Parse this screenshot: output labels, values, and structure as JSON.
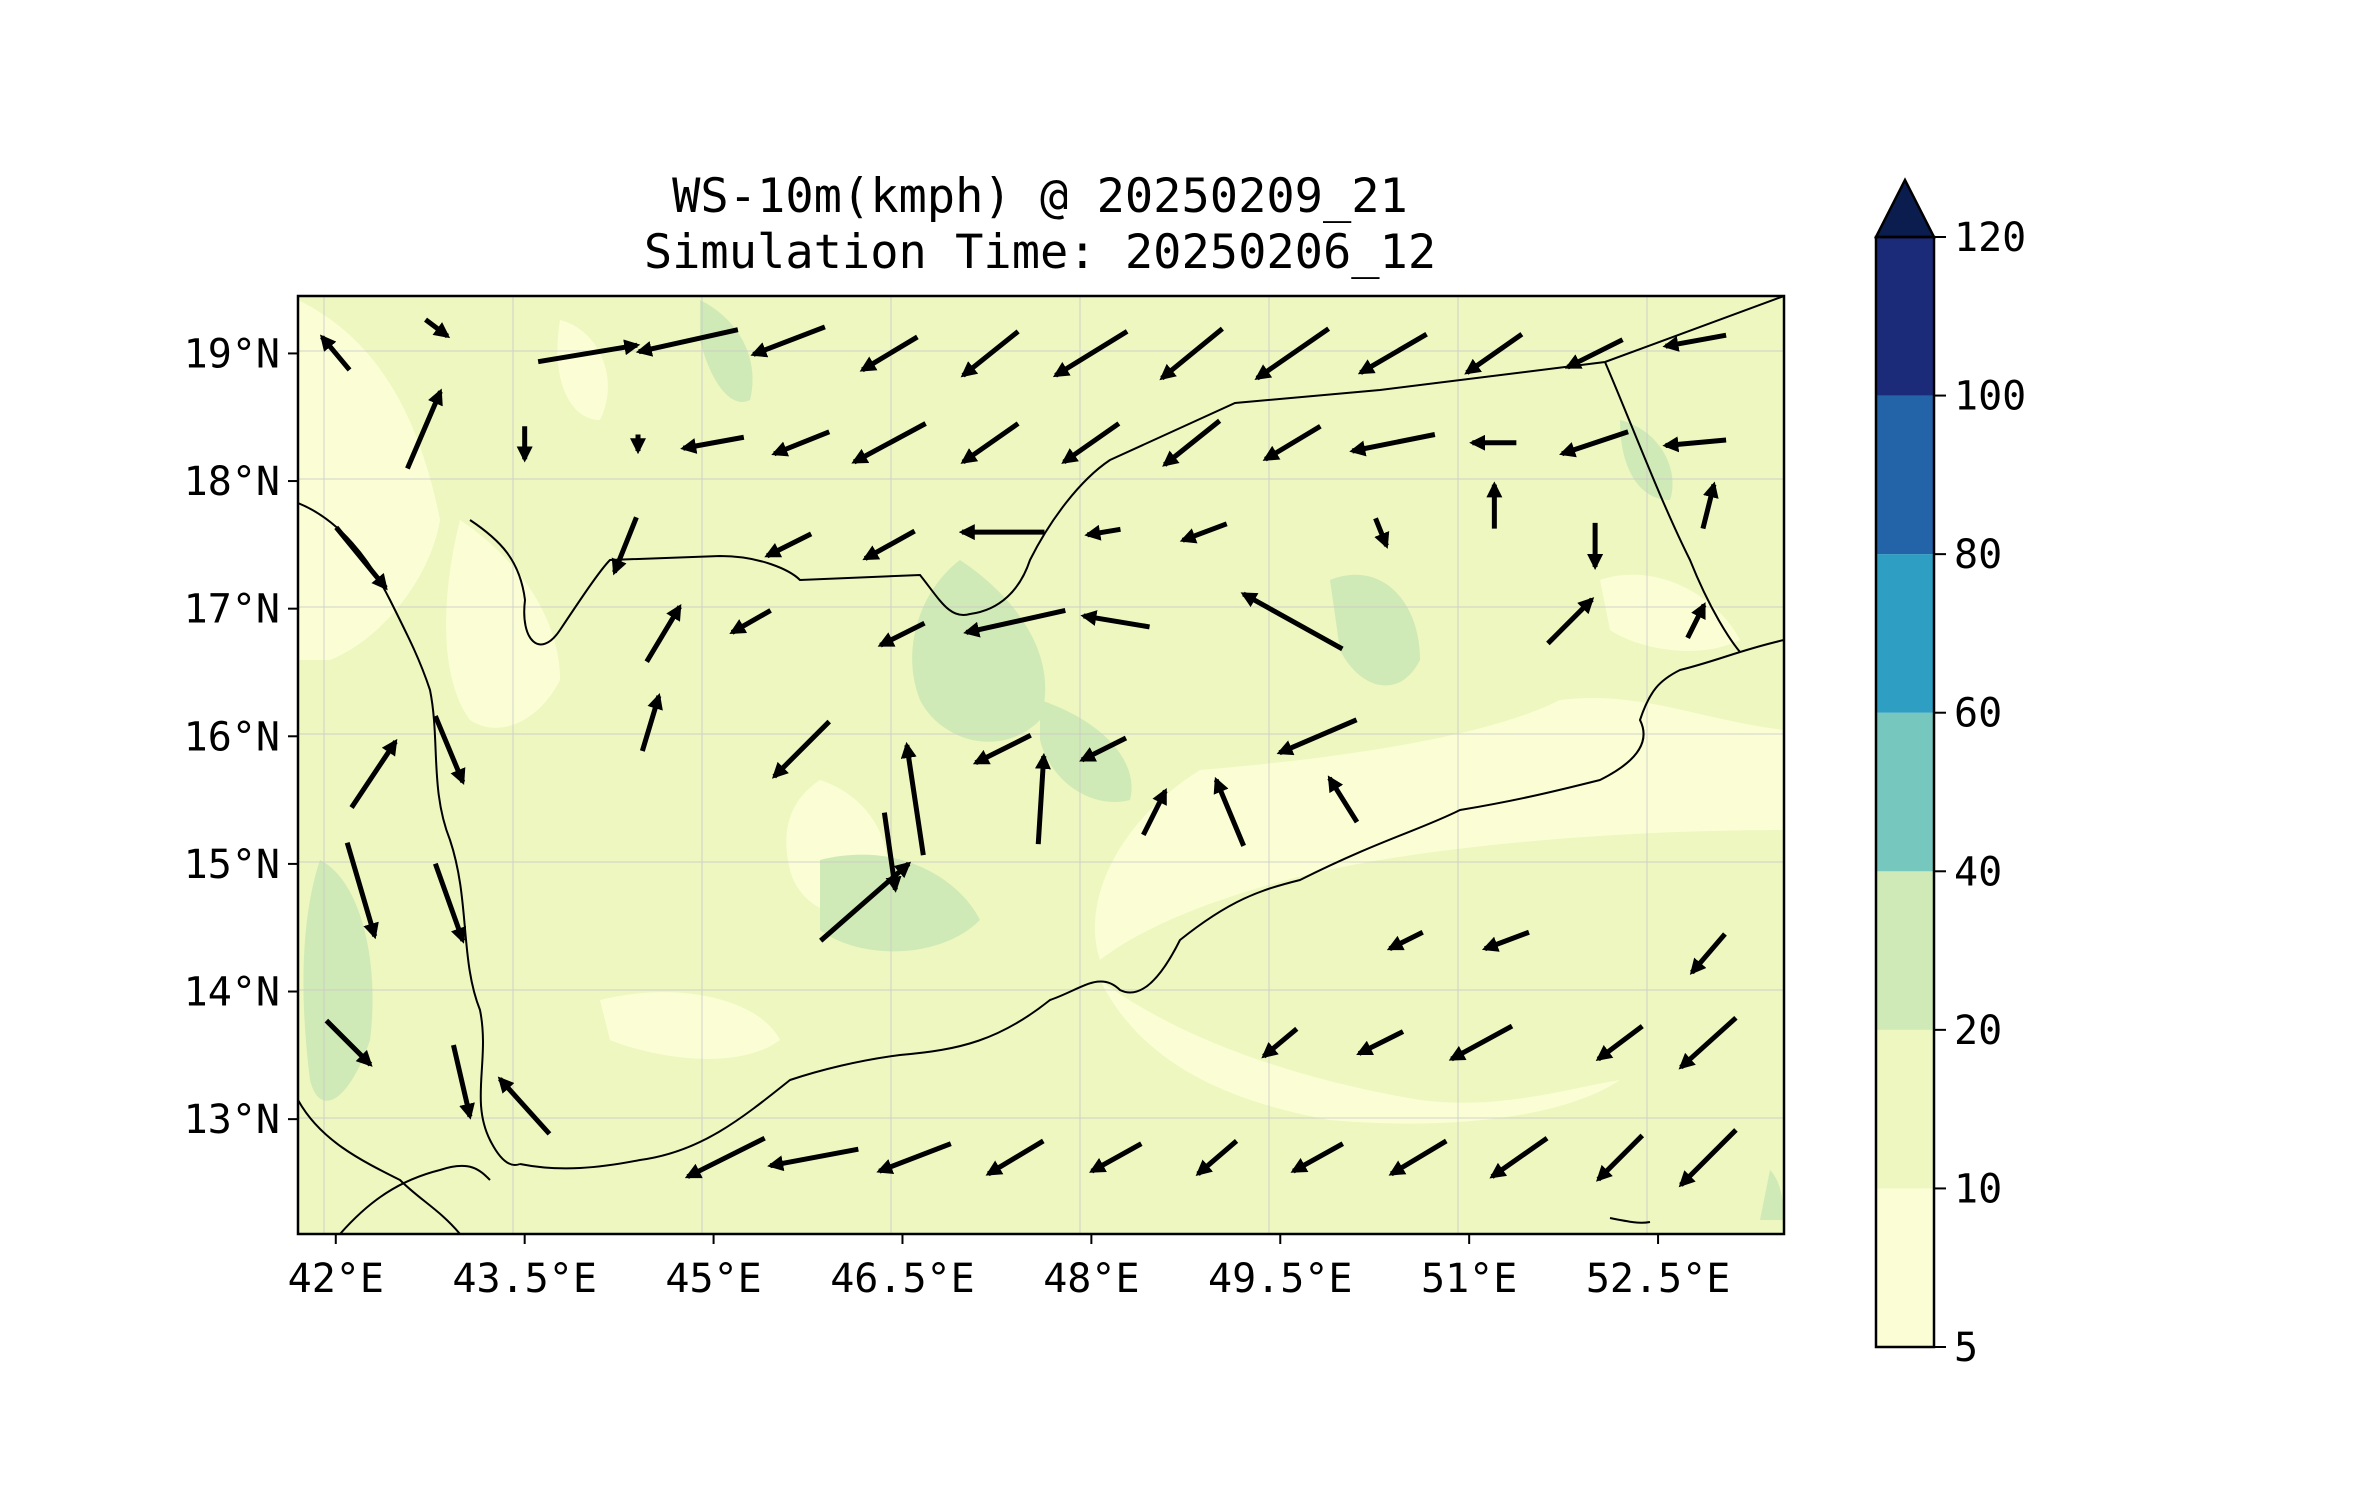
{
  "title": {
    "line1": "WS-10m(kmph) @ 20250209_21",
    "line2": "Simulation Time: 20250206_12"
  },
  "map": {
    "lon_range": [
      41.7,
      53.5
    ],
    "lat_range": [
      12.1,
      19.45
    ],
    "background_color": "#eef7c0",
    "xticks": [
      {
        "value": 42.0,
        "label": "42°E"
      },
      {
        "value": 43.5,
        "label": "43.5°E"
      },
      {
        "value": 45.0,
        "label": "45°E"
      },
      {
        "value": 46.5,
        "label": "46.5°E"
      },
      {
        "value": 48.0,
        "label": "48°E"
      },
      {
        "value": 49.5,
        "label": "49.5°E"
      },
      {
        "value": 51.0,
        "label": "51°E"
      },
      {
        "value": 52.5,
        "label": "52.5°E"
      }
    ],
    "yticks": [
      {
        "value": 19.0,
        "label": "19°N"
      },
      {
        "value": 18.0,
        "label": "18°N"
      },
      {
        "value": 17.0,
        "label": "17°N"
      },
      {
        "value": 16.0,
        "label": "16°N"
      },
      {
        "value": 15.0,
        "label": "15°N"
      },
      {
        "value": 14.0,
        "label": "14°N"
      },
      {
        "value": 13.0,
        "label": "13°N"
      }
    ],
    "gridlines": true,
    "wind_vectors_note_units": "kmph"
  },
  "colorbar": {
    "levels": [
      {
        "value": 5,
        "label": "5"
      },
      {
        "value": 10,
        "label": "10"
      },
      {
        "value": 20,
        "label": "20"
      },
      {
        "value": 40,
        "label": "40"
      },
      {
        "value": 60,
        "label": "60"
      },
      {
        "value": 80,
        "label": "80"
      },
      {
        "value": 100,
        "label": "100"
      },
      {
        "value": 120,
        "label": "120"
      }
    ],
    "colors": [
      "#fbfed4",
      "#eef7c0",
      "#cfeab6",
      "#76c7bd",
      "#2e9fc2",
      "#2363a8",
      "#1c2a7a"
    ],
    "extend_color": "#0b1d4f",
    "extend": "max"
  },
  "chart_data": {
    "type": "heatmap",
    "title": "WS-10m(kmph) @ 20250209_21 / Simulation Time: 20250206_12",
    "x": "longitude",
    "y": "latitude",
    "xlim": [
      41.7,
      53.5
    ],
    "ylim": [
      12.1,
      19.45
    ],
    "colorbar_levels": [
      5,
      10,
      20,
      40,
      60,
      80,
      100,
      120
    ],
    "dominant_range": "10-20 kmph with patches of 20-40 and below 10",
    "wind_vectors": [
      {
        "lon": 42.0,
        "lat": 19.0,
        "u": -0.5,
        "v": 0.6
      },
      {
        "lon": 42.8,
        "lat": 19.2,
        "u": 0.4,
        "v": -0.3
      },
      {
        "lon": 42.7,
        "lat": 18.4,
        "u": 0.6,
        "v": 1.4
      },
      {
        "lon": 44.0,
        "lat": 19.0,
        "u": 1.8,
        "v": 0.3
      },
      {
        "lon": 44.8,
        "lat": 19.1,
        "u": -1.8,
        "v": -0.4
      },
      {
        "lon": 45.6,
        "lat": 19.1,
        "u": -1.3,
        "v": -0.5
      },
      {
        "lon": 46.4,
        "lat": 19.0,
        "u": -1.0,
        "v": -0.6
      },
      {
        "lon": 47.2,
        "lat": 19.0,
        "u": -1.0,
        "v": -0.8
      },
      {
        "lon": 48.0,
        "lat": 19.0,
        "u": -1.3,
        "v": -0.8
      },
      {
        "lon": 48.8,
        "lat": 19.0,
        "u": -1.1,
        "v": -0.9
      },
      {
        "lon": 49.6,
        "lat": 19.0,
        "u": -1.3,
        "v": -0.9
      },
      {
        "lon": 50.4,
        "lat": 19.0,
        "u": -1.2,
        "v": -0.7
      },
      {
        "lon": 51.2,
        "lat": 19.0,
        "u": -1.0,
        "v": -0.7
      },
      {
        "lon": 52.0,
        "lat": 19.0,
        "u": -1.0,
        "v": -0.5
      },
      {
        "lon": 52.8,
        "lat": 19.1,
        "u": -1.1,
        "v": -0.2
      },
      {
        "lon": 43.5,
        "lat": 18.3,
        "u": 0.0,
        "v": -0.6
      },
      {
        "lon": 44.4,
        "lat": 18.3,
        "u": 0.0,
        "v": -0.3
      },
      {
        "lon": 45.0,
        "lat": 18.3,
        "u": -1.1,
        "v": -0.2
      },
      {
        "lon": 45.7,
        "lat": 18.3,
        "u": -1.0,
        "v": -0.4
      },
      {
        "lon": 46.4,
        "lat": 18.3,
        "u": -1.3,
        "v": -0.7
      },
      {
        "lon": 47.2,
        "lat": 18.3,
        "u": -1.0,
        "v": -0.7
      },
      {
        "lon": 48.0,
        "lat": 18.3,
        "u": -1.0,
        "v": -0.7
      },
      {
        "lon": 48.8,
        "lat": 18.3,
        "u": -1.0,
        "v": -0.8
      },
      {
        "lon": 49.6,
        "lat": 18.3,
        "u": -1.0,
        "v": -0.6
      },
      {
        "lon": 50.4,
        "lat": 18.3,
        "u": -1.5,
        "v": -0.3
      },
      {
        "lon": 51.2,
        "lat": 18.3,
        "u": -0.8,
        "v": 0.0
      },
      {
        "lon": 52.0,
        "lat": 18.3,
        "u": -1.2,
        "v": -0.4
      },
      {
        "lon": 52.8,
        "lat": 18.3,
        "u": -1.1,
        "v": -0.1
      },
      {
        "lon": 42.2,
        "lat": 17.4,
        "u": 0.9,
        "v": -1.1
      },
      {
        "lon": 44.3,
        "lat": 17.5,
        "u": -0.4,
        "v": -1.0
      },
      {
        "lon": 45.6,
        "lat": 17.5,
        "u": -0.8,
        "v": -0.4
      },
      {
        "lon": 46.4,
        "lat": 17.5,
        "u": -0.9,
        "v": -0.5
      },
      {
        "lon": 47.3,
        "lat": 17.6,
        "u": -1.5,
        "v": 0.0
      },
      {
        "lon": 48.1,
        "lat": 17.6,
        "u": -0.6,
        "v": -0.1
      },
      {
        "lon": 48.9,
        "lat": 17.6,
        "u": -0.8,
        "v": -0.3
      },
      {
        "lon": 49.6,
        "lat": 16.9,
        "u": -1.8,
        "v": 1.0
      },
      {
        "lon": 50.3,
        "lat": 17.6,
        "u": 0.2,
        "v": -0.5
      },
      {
        "lon": 51.2,
        "lat": 17.8,
        "u": 0.0,
        "v": 0.8
      },
      {
        "lon": 52.0,
        "lat": 17.5,
        "u": 0.0,
        "v": -0.8
      },
      {
        "lon": 52.9,
        "lat": 17.8,
        "u": 0.2,
        "v": 0.8
      },
      {
        "lon": 44.6,
        "lat": 16.8,
        "u": 0.6,
        "v": 1.0
      },
      {
        "lon": 45.3,
        "lat": 16.9,
        "u": -0.7,
        "v": -0.4
      },
      {
        "lon": 46.5,
        "lat": 16.8,
        "u": -0.8,
        "v": -0.4
      },
      {
        "lon": 47.4,
        "lat": 16.9,
        "u": -1.8,
        "v": -0.4
      },
      {
        "lon": 48.2,
        "lat": 16.9,
        "u": -1.2,
        "v": 0.2
      },
      {
        "lon": 51.8,
        "lat": 16.9,
        "u": 0.8,
        "v": 0.8
      },
      {
        "lon": 52.8,
        "lat": 16.9,
        "u": 0.3,
        "v": 0.6
      },
      {
        "lon": 42.3,
        "lat": 15.7,
        "u": 0.8,
        "v": 1.2
      },
      {
        "lon": 42.9,
        "lat": 15.9,
        "u": 0.5,
        "v": -1.2
      },
      {
        "lon": 44.5,
        "lat": 16.1,
        "u": 0.3,
        "v": 1.0
      },
      {
        "lon": 45.7,
        "lat": 15.9,
        "u": -1.0,
        "v": -1.0
      },
      {
        "lon": 46.6,
        "lat": 15.5,
        "u": -0.3,
        "v": 2.0
      },
      {
        "lon": 47.3,
        "lat": 15.9,
        "u": -1.0,
        "v": -0.5
      },
      {
        "lon": 47.6,
        "lat": 15.5,
        "u": 0.1,
        "v": 1.6
      },
      {
        "lon": 48.1,
        "lat": 15.9,
        "u": -0.8,
        "v": -0.4
      },
      {
        "lon": 48.5,
        "lat": 15.4,
        "u": 0.4,
        "v": 0.8
      },
      {
        "lon": 49.1,
        "lat": 15.4,
        "u": -0.5,
        "v": 1.2
      },
      {
        "lon": 49.8,
        "lat": 16.0,
        "u": -1.4,
        "v": -0.6
      },
      {
        "lon": 50.0,
        "lat": 15.5,
        "u": -0.5,
        "v": 0.8
      },
      {
        "lon": 46.2,
        "lat": 14.7,
        "u": 1.6,
        "v": 1.4
      },
      {
        "lon": 46.4,
        "lat": 15.1,
        "u": 0.2,
        "v": -1.4
      },
      {
        "lon": 42.2,
        "lat": 14.8,
        "u": 0.5,
        "v": -1.7
      },
      {
        "lon": 42.9,
        "lat": 14.7,
        "u": 0.5,
        "v": -1.4
      },
      {
        "lon": 42.1,
        "lat": 13.6,
        "u": 0.8,
        "v": -0.8
      },
      {
        "lon": 43.0,
        "lat": 13.3,
        "u": 0.3,
        "v": -1.3
      },
      {
        "lon": 43.5,
        "lat": 13.1,
        "u": -0.9,
        "v": 1.0
      },
      {
        "lon": 45.1,
        "lat": 12.7,
        "u": -1.4,
        "v": -0.7
      },
      {
        "lon": 45.8,
        "lat": 12.7,
        "u": -1.6,
        "v": -0.3
      },
      {
        "lon": 46.6,
        "lat": 12.7,
        "u": -1.3,
        "v": -0.5
      },
      {
        "lon": 47.4,
        "lat": 12.7,
        "u": -1.0,
        "v": -0.6
      },
      {
        "lon": 48.2,
        "lat": 12.7,
        "u": -0.9,
        "v": -0.5
      },
      {
        "lon": 49.0,
        "lat": 12.7,
        "u": -0.7,
        "v": -0.6
      },
      {
        "lon": 49.8,
        "lat": 12.7,
        "u": -0.9,
        "v": -0.5
      },
      {
        "lon": 50.6,
        "lat": 12.7,
        "u": -1.0,
        "v": -0.6
      },
      {
        "lon": 51.4,
        "lat": 12.7,
        "u": -1.0,
        "v": -0.7
      },
      {
        "lon": 52.2,
        "lat": 12.7,
        "u": -0.8,
        "v": -0.8
      },
      {
        "lon": 52.9,
        "lat": 12.7,
        "u": -1.0,
        "v": -1.0
      },
      {
        "lon": 51.1,
        "lat": 13.6,
        "u": -1.1,
        "v": -0.6
      },
      {
        "lon": 52.2,
        "lat": 13.6,
        "u": -0.8,
        "v": -0.6
      },
      {
        "lon": 52.9,
        "lat": 13.6,
        "u": -1.0,
        "v": -0.9
      },
      {
        "lon": 52.9,
        "lat": 14.3,
        "u": -0.6,
        "v": -0.7
      },
      {
        "lon": 51.3,
        "lat": 14.4,
        "u": -0.8,
        "v": -0.3
      },
      {
        "lon": 50.5,
        "lat": 14.4,
        "u": -0.6,
        "v": -0.3
      },
      {
        "lon": 49.5,
        "lat": 13.6,
        "u": -0.6,
        "v": -0.5
      },
      {
        "lon": 50.3,
        "lat": 13.6,
        "u": -0.8,
        "v": -0.4
      }
    ]
  }
}
